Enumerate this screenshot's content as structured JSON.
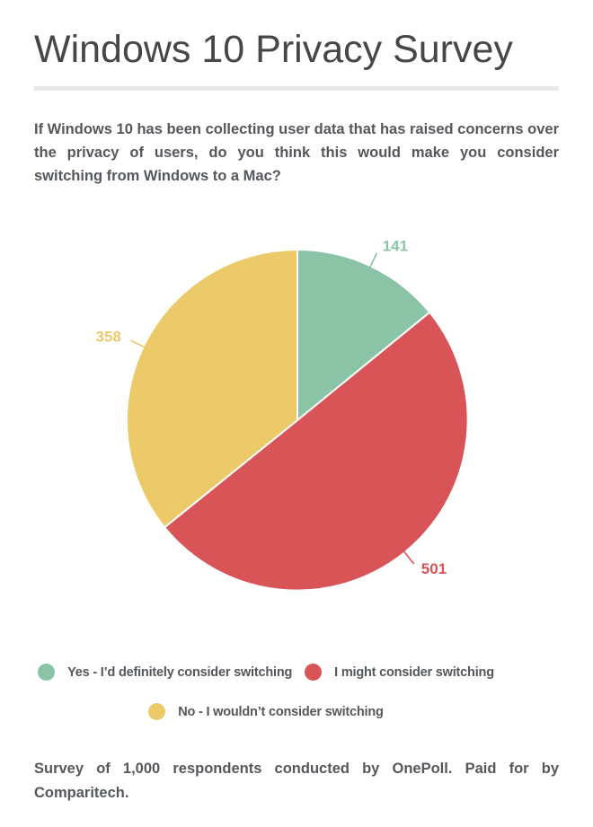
{
  "header": {
    "title": "Windows 10 Privacy Survey"
  },
  "question": {
    "text": "If Windows 10 has been collecting user data that has raised concerns over the privacy of users, do you think this would make you consider switching from Windows to a Mac?"
  },
  "chart_data": {
    "type": "pie",
    "title": "Windows 10 Privacy Survey",
    "total_respondents": 1000,
    "start_angle_deg": 0,
    "direction": "clockwise",
    "legend_position": "bottom",
    "data_labels_shown": true,
    "slices": [
      {
        "label": "Yes - I’d definitely consider switching",
        "value": 141,
        "color": "#8ac3a5"
      },
      {
        "label": "I might consider switching",
        "value": 501,
        "color": "#d85456"
      },
      {
        "label": "No - I wouldn’t consider switching",
        "value": 358,
        "color": "#ecca6a"
      }
    ]
  },
  "footer": {
    "text": "Survey of 1,000 respondents conducted by OnePoll. Paid for by Comparitech."
  },
  "colors": {
    "accent_green": "#8ac3a5",
    "accent_red": "#d85456",
    "accent_yellow": "#ecca6a",
    "title_text": "#474747",
    "body_text": "#54575c",
    "divider": "#e9e9e9",
    "background": "#ffffff"
  }
}
